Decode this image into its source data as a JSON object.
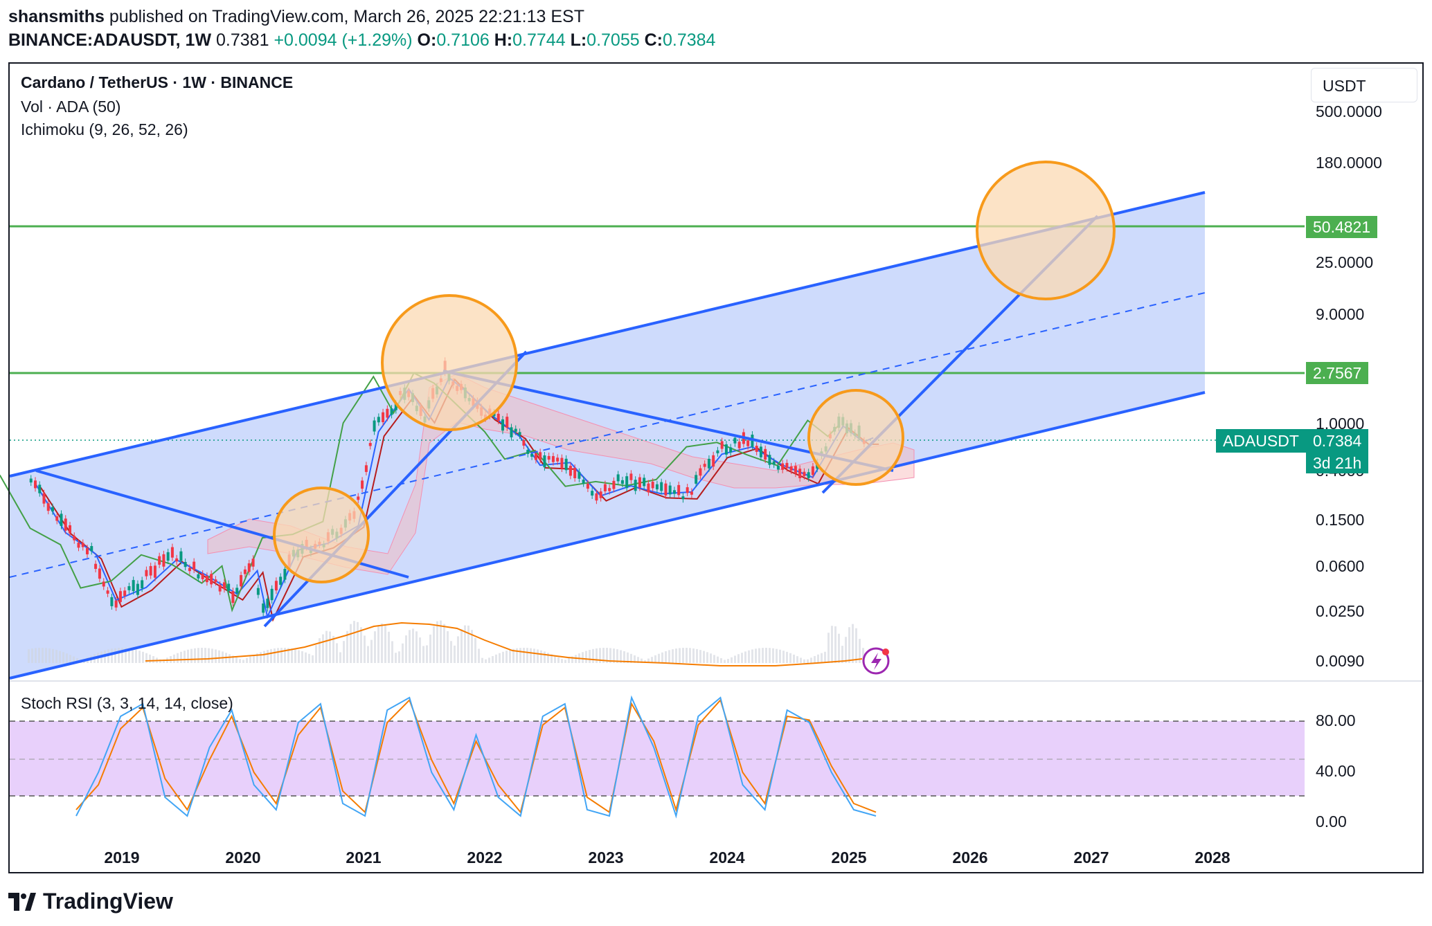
{
  "header": {
    "author": "shansmiths",
    "published": "published on TradingView.com, March 26, 2025 22:21:13 EST",
    "symbol": "BINANCE:ADAUSDT, 1W",
    "last": "0.7381",
    "change": "+0.0094 (+1.29%)",
    "open_label": "O:",
    "open": "0.7106",
    "high_label": "H:",
    "high": "0.7744",
    "low_label": "L:",
    "low": "0.7055",
    "close_label": "C:",
    "close": "0.7384"
  },
  "legend": {
    "title": "Cardano / TetherUS · 1W · BINANCE",
    "vol": "Vol · ADA (50)",
    "ichimoku": "Ichimoku (9, 26, 52, 26)",
    "stoch": "Stoch RSI (3, 3, 14, 14, close)"
  },
  "currency": "USDT",
  "badges": {
    "level_top": "50.4821",
    "level_mid": "2.7567",
    "symbol": "ADAUSDT",
    "price": "0.7384",
    "countdown": "3d 21h"
  },
  "colors": {
    "green_level": "#4caf50",
    "channel_line": "#2962ff",
    "channel_fill": "#c5d5fb",
    "circle_stroke": "#f79a1b",
    "circle_fill": "#fbd9b3",
    "badge_green": "#089981",
    "stoch_band": "#e6cbfb",
    "tenkan": "#2962ff",
    "kijun": "#b71c1c",
    "chikou": "#43a047"
  },
  "tradingview_brand": "TradingView",
  "chart_data": {
    "type": "line",
    "y_scale": "log",
    "price_ticks": [
      "500.0000",
      "180.0000",
      "25.0000",
      "9.0000",
      "1.0000",
      "0.4000",
      "0.1500",
      "0.0600",
      "0.0250",
      "0.0090"
    ],
    "x_ticks": [
      "2019",
      "2020",
      "2021",
      "2022",
      "2023",
      "2024",
      "2025",
      "2026",
      "2027",
      "2028"
    ],
    "levels": [
      50.4821,
      2.7567
    ],
    "current_price": 0.7384,
    "stoch_ticks": [
      "80.00",
      "40.00",
      "0.00"
    ],
    "stoch_band": [
      20,
      80
    ],
    "price_series": [
      [
        "2018-04",
        0.33
      ],
      [
        "2018-07",
        0.14
      ],
      [
        "2018-10",
        0.08
      ],
      [
        "2018-12",
        0.03
      ],
      [
        "2019-03",
        0.045
      ],
      [
        "2019-06",
        0.08
      ],
      [
        "2019-09",
        0.05
      ],
      [
        "2019-12",
        0.035
      ],
      [
        "2020-02",
        0.065
      ],
      [
        "2020-03",
        0.025
      ],
      [
        "2020-06",
        0.08
      ],
      [
        "2020-09",
        0.1
      ],
      [
        "2020-12",
        0.16
      ],
      [
        "2021-02",
        0.9
      ],
      [
        "2021-05",
        1.9
      ],
      [
        "2021-07",
        1.2
      ],
      [
        "2021-09",
        2.9
      ],
      [
        "2021-11",
        1.8
      ],
      [
        "2022-01",
        1.2
      ],
      [
        "2022-04",
        0.9
      ],
      [
        "2022-06",
        0.5
      ],
      [
        "2022-09",
        0.45
      ],
      [
        "2022-12",
        0.25
      ],
      [
        "2023-03",
        0.35
      ],
      [
        "2023-06",
        0.27
      ],
      [
        "2023-09",
        0.25
      ],
      [
        "2023-12",
        0.6
      ],
      [
        "2024-03",
        0.75
      ],
      [
        "2024-06",
        0.45
      ],
      [
        "2024-09",
        0.34
      ],
      [
        "2024-12",
        1.1
      ],
      [
        "2025-02",
        0.8
      ],
      [
        "2025-03",
        0.7384
      ]
    ],
    "stoch_k": [
      5,
      40,
      85,
      95,
      20,
      5,
      60,
      90,
      30,
      10,
      80,
      95,
      15,
      5,
      90,
      100,
      40,
      10,
      70,
      20,
      5,
      85,
      95,
      10,
      5,
      100,
      60,
      5,
      85,
      100,
      30,
      10,
      90,
      80,
      40,
      10,
      5
    ],
    "stoch_d": [
      10,
      30,
      75,
      92,
      35,
      10,
      50,
      85,
      40,
      15,
      70,
      92,
      25,
      8,
      80,
      98,
      50,
      15,
      65,
      30,
      8,
      78,
      92,
      20,
      8,
      95,
      65,
      10,
      78,
      98,
      40,
      15,
      85,
      82,
      45,
      15,
      8
    ]
  }
}
